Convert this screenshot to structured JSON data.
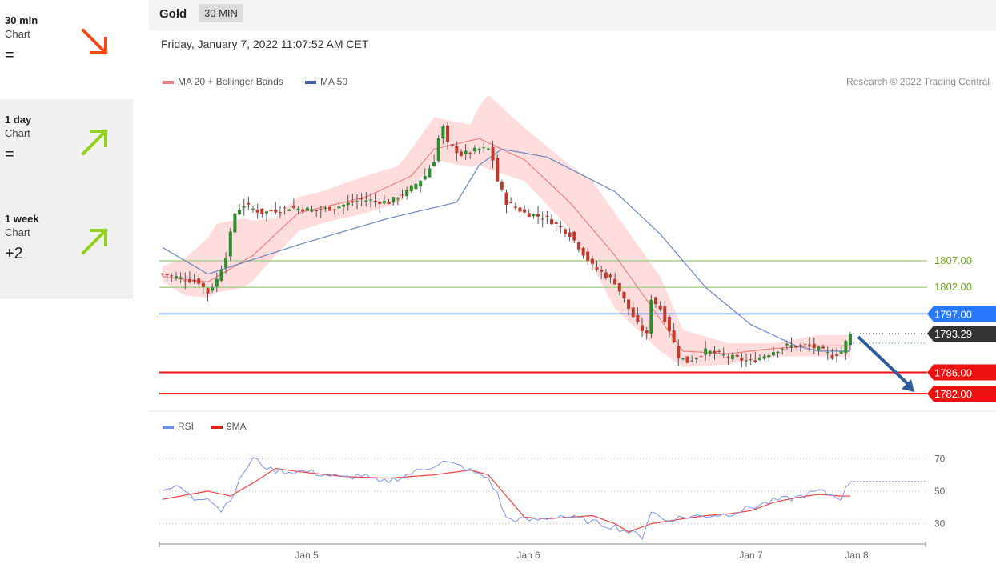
{
  "sidebar": {
    "items": [
      {
        "title": "30 min",
        "sub": "Chart",
        "score": "=",
        "direction": "down-right",
        "color": "#f24a1f"
      },
      {
        "title": "1 day",
        "sub": "Chart",
        "score": "=",
        "direction": "up-right",
        "color": "#94d11f"
      },
      {
        "title": "1 week",
        "sub": "Chart",
        "score": "+2",
        "direction": "up-right",
        "color": "#94d11f"
      }
    ]
  },
  "header": {
    "instrument": "Gold",
    "timeframe": "30 MIN",
    "datetime": "Friday, January 7, 2022 11:07:52 AM CET"
  },
  "legend": {
    "ma20": "MA 20 + Bollinger Bands",
    "ma50": "MA 50",
    "copyright": "Research © 2022 Trading Central",
    "rsi": "RSI",
    "rsi_ma": "9MA"
  },
  "colors": {
    "bullish": "#2e8b2e",
    "bearish": "#c0392b",
    "ma20": "#f08080",
    "ma50": "#6b86c0",
    "bollinger": "#ffd5d5",
    "support": "#ee1111",
    "resistance_green": "#a8d08d",
    "pivot_blue": "#3a78f2",
    "rsi": "#7b95e8",
    "rsi_ma": "#e84545"
  },
  "chart_data": [
    {
      "type": "candlestick",
      "x_ticks": [
        "Jan 5",
        "Jan 6",
        "Jan 7",
        "Jan 8"
      ],
      "ylim": [
        1779,
        1838
      ],
      "levels": [
        {
          "label": "1807.00",
          "value": 1807.0,
          "kind": "resistance"
        },
        {
          "label": "1802.00",
          "value": 1802.0,
          "kind": "resistance"
        },
        {
          "label": "1797.00",
          "value": 1797.0,
          "kind": "pivot"
        },
        {
          "label": "1786.00",
          "value": 1786.0,
          "kind": "support"
        },
        {
          "label": "1782.00",
          "value": 1782.0,
          "kind": "support"
        }
      ],
      "last_price": {
        "label": "1793.29",
        "value": 1793.29
      },
      "forecast": {
        "direction": "down",
        "target": 1782.0
      },
      "ma50_anchors": [
        [
          0,
          1809.5
        ],
        [
          10,
          1804.5
        ],
        [
          30,
          1810
        ],
        [
          50,
          1815
        ],
        [
          65,
          1818
        ],
        [
          70,
          1825
        ],
        [
          75,
          1828
        ],
        [
          85,
          1826.5
        ],
        [
          100,
          1820
        ],
        [
          110,
          1812
        ],
        [
          120,
          1802
        ],
        [
          130,
          1795
        ],
        [
          140,
          1791
        ],
        [
          145,
          1790
        ]
      ],
      "ma20_anchors": [
        [
          0,
          1804
        ],
        [
          10,
          1803
        ],
        [
          20,
          1808
        ],
        [
          30,
          1816
        ],
        [
          45,
          1819
        ],
        [
          55,
          1823
        ],
        [
          60,
          1828
        ],
        [
          70,
          1830
        ],
        [
          80,
          1826
        ],
        [
          90,
          1818
        ],
        [
          100,
          1808
        ],
        [
          110,
          1796
        ],
        [
          115,
          1790
        ],
        [
          125,
          1789.5
        ],
        [
          135,
          1790.5
        ],
        [
          145,
          1791
        ]
      ],
      "band_anchors": [
        [
          0,
          2,
          1
        ],
        [
          5,
          4,
          3
        ],
        [
          12,
          10,
          3
        ],
        [
          18,
          8,
          5
        ],
        [
          25,
          3,
          4
        ],
        [
          35,
          3,
          3
        ],
        [
          45,
          4,
          3
        ],
        [
          52,
          3,
          4
        ],
        [
          55,
          5,
          3
        ],
        [
          60,
          6,
          2
        ],
        [
          68,
          3,
          5
        ],
        [
          72,
          9,
          5
        ],
        [
          80,
          6,
          4
        ],
        [
          90,
          7,
          5
        ],
        [
          95,
          9,
          7
        ],
        [
          100,
          8,
          10
        ],
        [
          110,
          8,
          6
        ],
        [
          115,
          4,
          3
        ],
        [
          125,
          2,
          2
        ],
        [
          135,
          1,
          1.5
        ],
        [
          145,
          2,
          2
        ]
      ],
      "candle_anchors": [
        [
          0,
          1804.5
        ],
        [
          8,
          1803
        ],
        [
          10,
          1801
        ],
        [
          12,
          1803.5
        ],
        [
          14,
          1808
        ],
        [
          16,
          1816
        ],
        [
          18,
          1817.5
        ],
        [
          22,
          1816
        ],
        [
          28,
          1817
        ],
        [
          34,
          1816.5
        ],
        [
          38,
          1817
        ],
        [
          44,
          1818.5
        ],
        [
          50,
          1818
        ],
        [
          54,
          1820
        ],
        [
          58,
          1823
        ],
        [
          60,
          1826
        ],
        [
          61,
          1830
        ],
        [
          62,
          1832
        ],
        [
          63,
          1829
        ],
        [
          66,
          1827
        ],
        [
          70,
          1828
        ],
        [
          72,
          1828
        ],
        [
          73,
          1826
        ],
        [
          74,
          1822
        ],
        [
          76,
          1818
        ],
        [
          80,
          1816
        ],
        [
          85,
          1815
        ],
        [
          90,
          1812
        ],
        [
          95,
          1806
        ],
        [
          100,
          1803
        ],
        [
          103,
          1798
        ],
        [
          105,
          1795
        ],
        [
          107,
          1793
        ],
        [
          108,
          1800
        ],
        [
          110,
          1798
        ],
        [
          112,
          1794
        ],
        [
          114,
          1789
        ],
        [
          116,
          1788
        ],
        [
          120,
          1790
        ],
        [
          125,
          1789
        ],
        [
          130,
          1788
        ],
        [
          135,
          1790
        ],
        [
          138,
          1791
        ],
        [
          143,
          1791
        ],
        [
          146,
          1790
        ],
        [
          148,
          1789
        ],
        [
          150,
          1790
        ],
        [
          152,
          1793.3
        ]
      ],
      "candle_count": 153
    },
    {
      "type": "line",
      "series": [
        {
          "name": "RSI"
        },
        {
          "name": "9MA"
        }
      ],
      "y_ticks": [
        30,
        50,
        70
      ],
      "ylim": [
        19,
        78
      ],
      "last_value": 56,
      "rsi_anchors": [
        [
          0,
          52
        ],
        [
          4,
          52
        ],
        [
          7,
          45
        ],
        [
          10,
          47
        ],
        [
          13,
          38
        ],
        [
          16,
          50
        ],
        [
          18,
          62
        ],
        [
          20,
          70
        ],
        [
          24,
          63
        ],
        [
          28,
          62
        ],
        [
          32,
          62
        ],
        [
          36,
          60
        ],
        [
          40,
          58
        ],
        [
          44,
          60
        ],
        [
          48,
          55
        ],
        [
          52,
          58
        ],
        [
          56,
          62
        ],
        [
          60,
          66
        ],
        [
          62,
          68
        ],
        [
          66,
          65
        ],
        [
          70,
          60
        ],
        [
          72,
          58
        ],
        [
          74,
          48
        ],
        [
          76,
          33
        ],
        [
          82,
          32
        ],
        [
          88,
          35
        ],
        [
          95,
          31
        ],
        [
          100,
          28
        ],
        [
          103,
          25
        ],
        [
          106,
          22
        ],
        [
          108,
          38
        ],
        [
          111,
          32
        ],
        [
          115,
          34
        ],
        [
          120,
          35
        ],
        [
          125,
          36
        ],
        [
          130,
          40
        ],
        [
          135,
          44
        ],
        [
          140,
          46
        ],
        [
          145,
          50
        ],
        [
          150,
          46
        ],
        [
          152,
          56
        ]
      ],
      "ma_anchors": [
        [
          0,
          45
        ],
        [
          10,
          50
        ],
        [
          15,
          47
        ],
        [
          20,
          55
        ],
        [
          25,
          64
        ],
        [
          30,
          62
        ],
        [
          40,
          59
        ],
        [
          50,
          58
        ],
        [
          60,
          60
        ],
        [
          68,
          63
        ],
        [
          72,
          60
        ],
        [
          80,
          34
        ],
        [
          85,
          33
        ],
        [
          95,
          35
        ],
        [
          100,
          30
        ],
        [
          103,
          25
        ],
        [
          108,
          30
        ],
        [
          115,
          33
        ],
        [
          120,
          35
        ],
        [
          125,
          36
        ],
        [
          130,
          38
        ],
        [
          135,
          43
        ],
        [
          140,
          46
        ],
        [
          145,
          48
        ],
        [
          150,
          47
        ],
        [
          152,
          47
        ]
      ]
    }
  ]
}
